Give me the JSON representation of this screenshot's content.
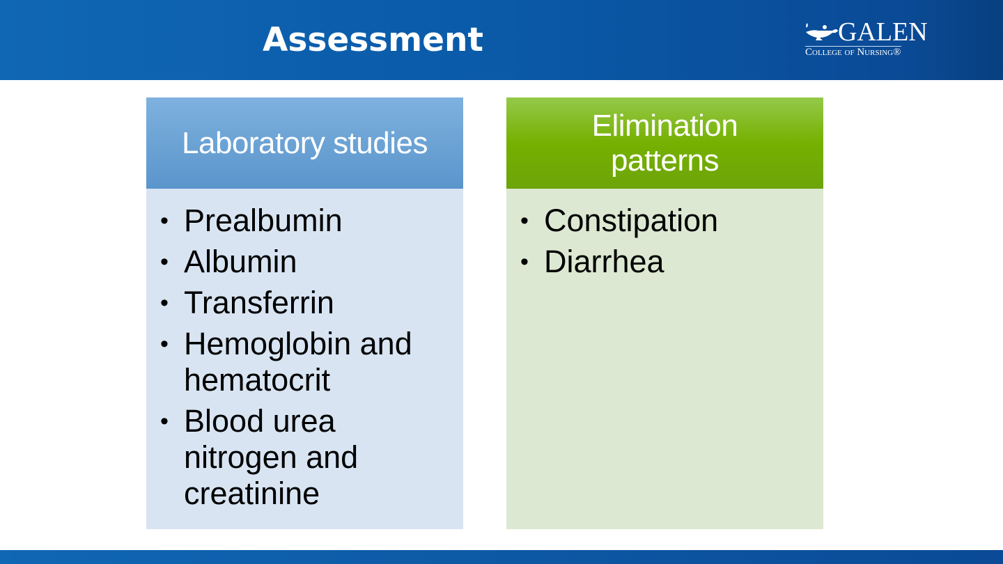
{
  "slide": {
    "title": "Assessment"
  },
  "logo": {
    "name": "GALEN",
    "subtitle": "College of Nursing®"
  },
  "panels": [
    {
      "heading": "Laboratory studies",
      "items": [
        "Prealbumin",
        "Albumin",
        "Transferrin",
        "Hemoglobin and hematocrit",
        "Blood urea nitrogen and creatinine"
      ]
    },
    {
      "heading": "Elimination patterns",
      "items": [
        "Constipation",
        "Diarrhea"
      ]
    }
  ],
  "colors": {
    "header": "#0a5aa8",
    "lab_header": "#6aa2d4",
    "lab_body": "#d8e4f2",
    "elim_header": "#76b000",
    "elim_body": "#dce8d2"
  }
}
